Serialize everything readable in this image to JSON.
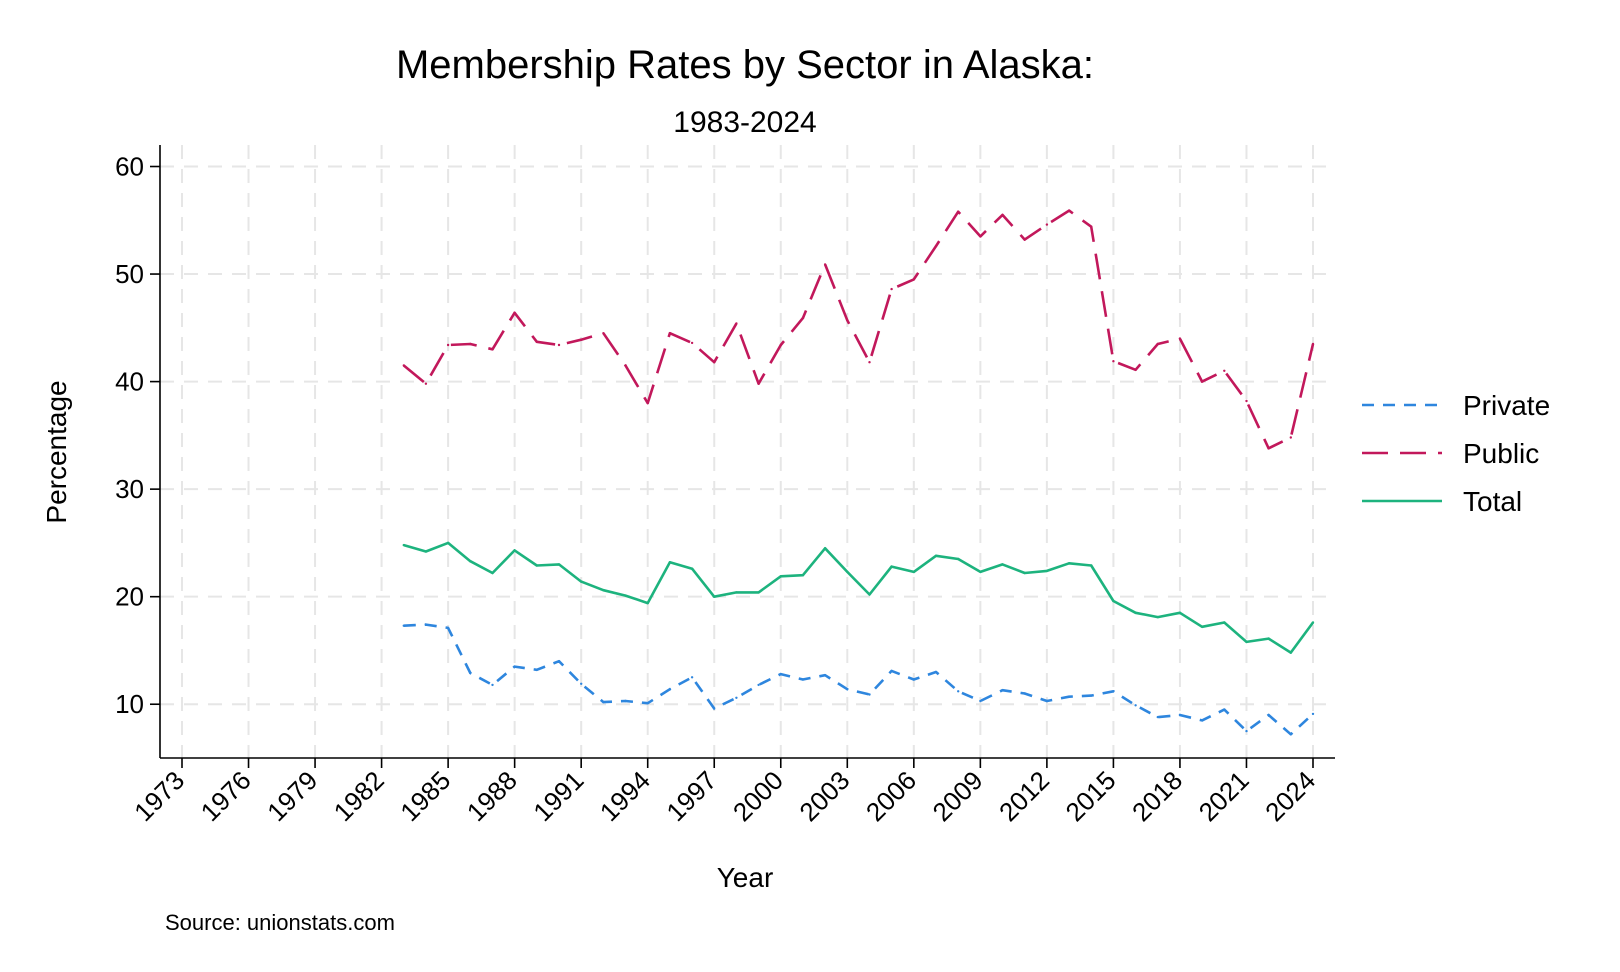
{
  "chart_data": {
    "type": "line",
    "title": "Membership Rates by Sector in Alaska:",
    "subtitle": "1983-2024",
    "xlabel": "Year",
    "ylabel": "Percentage",
    "source": "Source: unionstats.com",
    "xlim": [
      1973,
      2024
    ],
    "ylim": [
      5,
      62
    ],
    "xticks": [
      1973,
      1976,
      1979,
      1982,
      1985,
      1988,
      1991,
      1994,
      1997,
      2000,
      2003,
      2006,
      2009,
      2012,
      2015,
      2018,
      2021,
      2024
    ],
    "yticks": [
      10,
      20,
      30,
      40,
      50,
      60
    ],
    "grid": true,
    "legend_position": "right",
    "x": [
      1983,
      1984,
      1985,
      1986,
      1987,
      1988,
      1989,
      1990,
      1991,
      1992,
      1993,
      1994,
      1995,
      1996,
      1997,
      1998,
      1999,
      2000,
      2001,
      2002,
      2003,
      2004,
      2005,
      2006,
      2007,
      2008,
      2009,
      2010,
      2011,
      2012,
      2013,
      2014,
      2015,
      2016,
      2017,
      2018,
      2019,
      2020,
      2021,
      2022,
      2023,
      2024
    ],
    "series": [
      {
        "name": "Private",
        "color": "#2e86de",
        "dash": "short",
        "values": [
          17.3,
          17.4,
          17.1,
          12.9,
          11.8,
          13.5,
          13.2,
          14.0,
          11.9,
          10.2,
          10.3,
          10.1,
          11.4,
          12.5,
          9.6,
          10.6,
          11.8,
          12.8,
          12.3,
          12.7,
          11.4,
          10.9,
          13.1,
          12.3,
          13.0,
          11.2,
          10.3,
          11.3,
          11.0,
          10.3,
          10.7,
          10.8,
          11.2,
          9.9,
          8.8,
          9.0,
          8.5,
          9.5,
          7.5,
          9.0,
          7.2,
          9.1
        ]
      },
      {
        "name": "Public",
        "color": "#c2185b",
        "dash": "long",
        "values": [
          41.5,
          39.8,
          43.4,
          43.5,
          43.0,
          46.4,
          43.7,
          43.4,
          43.9,
          44.5,
          41.5,
          38.0,
          44.5,
          43.6,
          41.8,
          45.4,
          39.8,
          43.4,
          45.9,
          50.9,
          45.7,
          41.8,
          48.6,
          49.5,
          52.6,
          55.8,
          53.5,
          55.5,
          53.2,
          54.6,
          55.9,
          54.4,
          41.9,
          41.1,
          43.5,
          44.0,
          40.0,
          41.0,
          38.2,
          33.8,
          34.8,
          43.5
        ]
      },
      {
        "name": "Total",
        "color": "#1db37e",
        "dash": "solid",
        "values": [
          24.8,
          24.2,
          25.0,
          23.3,
          22.2,
          24.3,
          22.9,
          23.0,
          21.4,
          20.6,
          20.1,
          19.4,
          23.2,
          22.6,
          20.0,
          20.4,
          20.4,
          21.9,
          22.0,
          24.5,
          22.3,
          20.2,
          22.8,
          22.3,
          23.8,
          23.5,
          22.3,
          23.0,
          22.2,
          22.4,
          23.1,
          22.9,
          19.6,
          18.5,
          18.1,
          18.5,
          17.2,
          17.6,
          15.8,
          16.1,
          14.8,
          17.6
        ]
      }
    ]
  }
}
